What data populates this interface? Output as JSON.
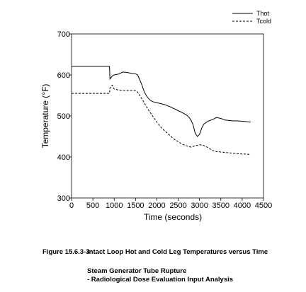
{
  "chart_data": {
    "type": "line",
    "xlabel": "Time (seconds)",
    "ylabel": "Temperature (°F)",
    "xlim": [
      0,
      4500
    ],
    "ylim": [
      300,
      700
    ],
    "x_ticks": [
      "0",
      "500",
      "1000",
      "1500",
      "2000",
      "2500",
      "3000",
      "3500",
      "4000",
      "4500"
    ],
    "y_ticks": [
      "300",
      "400",
      "500",
      "600",
      "700"
    ],
    "grid": false,
    "legend_position": "top-right",
    "series": [
      {
        "name": "Thot",
        "style": "solid",
        "x": [
          0,
          880,
          890,
          900,
          950,
          1000,
          1100,
          1200,
          1300,
          1400,
          1500,
          1550,
          1600,
          1650,
          1700,
          1750,
          1800,
          1850,
          1900,
          2000,
          2100,
          2200,
          2300,
          2400,
          2500,
          2600,
          2700,
          2750,
          2800,
          2850,
          2900,
          2950,
          3000,
          3050,
          3100,
          3200,
          3300,
          3400,
          3500,
          3600,
          3700,
          3800,
          3900,
          4000,
          4100,
          4200
        ],
        "y": [
          621,
          621,
          621,
          590,
          597,
          600,
          602,
          607,
          606,
          604,
          603,
          600,
          588,
          575,
          560,
          550,
          543,
          538,
          535,
          532,
          530,
          527,
          523,
          518,
          513,
          508,
          502,
          497,
          490,
          478,
          458,
          450,
          455,
          470,
          480,
          487,
          491,
          496,
          494,
          490,
          489,
          488,
          488,
          487,
          486,
          485
        ]
      },
      {
        "name": "Tcold",
        "style": "dashed",
        "x": [
          0,
          880,
          890,
          900,
          950,
          1000,
          1100,
          1200,
          1300,
          1400,
          1500,
          1550,
          1600,
          1700,
          1800,
          1900,
          2000,
          2100,
          2200,
          2300,
          2400,
          2500,
          2600,
          2700,
          2800,
          2900,
          3000,
          3100,
          3200,
          3300,
          3400,
          3500,
          3600,
          3700,
          3800,
          3900,
          4000,
          4100,
          4200
        ],
        "y": [
          555,
          555,
          555,
          568,
          575,
          566,
          563,
          562,
          562,
          562,
          562,
          558,
          550,
          533,
          515,
          500,
          485,
          472,
          462,
          453,
          444,
          437,
          431,
          427,
          424,
          427,
          430,
          428,
          423,
          416,
          413,
          412,
          411,
          410,
          409,
          408,
          407,
          407,
          406
        ]
      }
    ]
  },
  "caption": {
    "figure_number": "Figure 15.6.3-3",
    "title": "Intact Loop Hot and Cold Leg Temperatures versus Time",
    "subtitle_line1": "Steam Generator Tube Rupture",
    "subtitle_line2": "- Radiological Dose Evaluation Input Analysis"
  },
  "colors": {
    "line": "#000000",
    "background": "#ffffff"
  }
}
